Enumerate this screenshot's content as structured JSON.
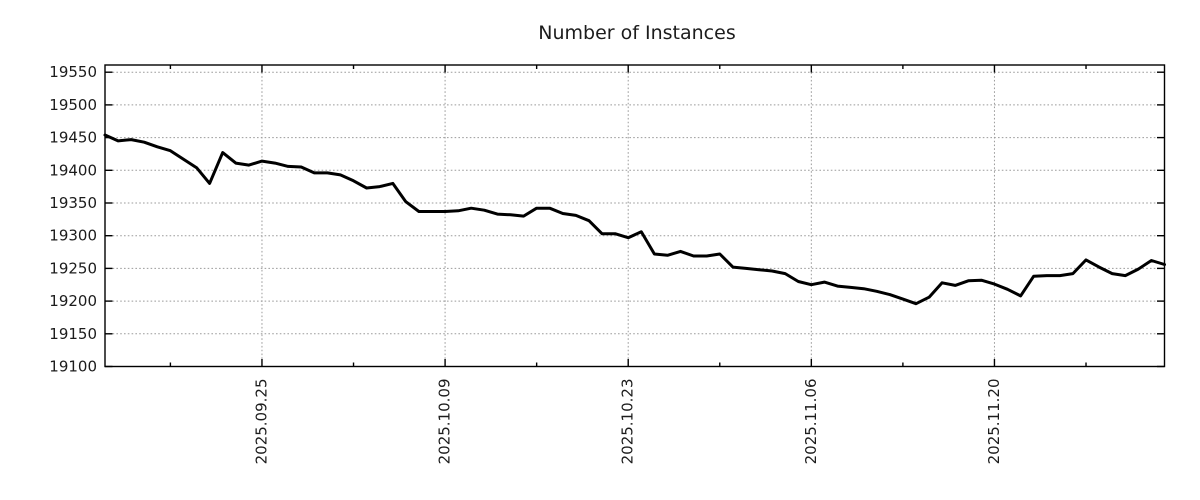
{
  "title": "Number of Instances",
  "chart_data": {
    "type": "line",
    "title": "Number of Instances",
    "xlabel": "",
    "ylabel": "",
    "legend": "none",
    "grid": "dotted",
    "background": "#ffffff",
    "line_color": "#000000",
    "grid_color": "#9b9b9b",
    "frame_color": "#000000",
    "text_color": "#1c1c1c",
    "ylim": [
      19100,
      19561
    ],
    "yticks": [
      19100,
      19150,
      19200,
      19250,
      19300,
      19350,
      19400,
      19450,
      19500,
      19550
    ],
    "xticks": [
      {
        "index": 12,
        "label": "2025.09.25"
      },
      {
        "index": 26,
        "label": "2025.10.09"
      },
      {
        "index": 40,
        "label": "2025.10.23"
      },
      {
        "index": 54,
        "label": "2025.11.06"
      },
      {
        "index": 68,
        "label": "2025.11.20"
      }
    ],
    "minor_xtick_indices": [
      5,
      19,
      33,
      47,
      61,
      75
    ],
    "x": [
      "2025-09-13",
      "2025-09-14",
      "2025-09-15",
      "2025-09-16",
      "2025-09-17",
      "2025-09-18",
      "2025-09-19",
      "2025-09-20",
      "2025-09-21",
      "2025-09-22",
      "2025-09-23",
      "2025-09-24",
      "2025-09-25",
      "2025-09-26",
      "2025-09-27",
      "2025-09-28",
      "2025-09-29",
      "2025-09-30",
      "2025-10-01",
      "2025-10-02",
      "2025-10-03",
      "2025-10-04",
      "2025-10-05",
      "2025-10-06",
      "2025-10-07",
      "2025-10-08",
      "2025-10-09",
      "2025-10-10",
      "2025-10-11",
      "2025-10-12",
      "2025-10-13",
      "2025-10-14",
      "2025-10-15",
      "2025-10-16",
      "2025-10-17",
      "2025-10-18",
      "2025-10-19",
      "2025-10-20",
      "2025-10-21",
      "2025-10-22",
      "2025-10-23",
      "2025-10-24",
      "2025-10-25",
      "2025-10-26",
      "2025-10-27",
      "2025-10-28",
      "2025-10-29",
      "2025-10-30",
      "2025-10-31",
      "2025-11-01",
      "2025-11-02",
      "2025-11-03",
      "2025-11-04",
      "2025-11-05",
      "2025-11-06",
      "2025-11-07",
      "2025-11-08",
      "2025-11-09",
      "2025-11-10",
      "2025-11-11",
      "2025-11-12",
      "2025-11-13",
      "2025-11-14",
      "2025-11-15",
      "2025-11-16",
      "2025-11-17",
      "2025-11-18",
      "2025-11-19",
      "2025-11-20",
      "2025-11-21",
      "2025-11-22",
      "2025-11-23",
      "2025-11-24",
      "2025-11-25",
      "2025-11-26",
      "2025-11-27",
      "2025-11-28",
      "2025-11-29",
      "2025-11-30",
      "2025-12-01",
      "2025-12-02",
      "2025-12-03"
    ],
    "values": [
      19454,
      19445,
      19447,
      19443,
      19436,
      19430,
      19417,
      19404,
      19380,
      19427,
      19411,
      19408,
      19414,
      19411,
      19406,
      19405,
      19396,
      19396,
      19393,
      19384,
      19373,
      19375,
      19380,
      19352,
      19337,
      19337,
      19337,
      19338,
      19342,
      19339,
      19333,
      19332,
      19330,
      19342,
      19342,
      19334,
      19331,
      19323,
      19303,
      19303,
      19297,
      19306,
      19272,
      19270,
      19276,
      19269,
      19269,
      19272,
      19252,
      19250,
      19248,
      19246,
      19242,
      19230,
      19225,
      19229,
      19223,
      19221,
      19219,
      19215,
      19210,
      19203,
      19196,
      19206,
      19228,
      19224,
      19231,
      19232,
      19226,
      19218,
      19208,
      19238,
      19239,
      19239,
      19242,
      19263,
      19252,
      19242,
      19239,
      19249,
      19262,
      19256
    ]
  }
}
